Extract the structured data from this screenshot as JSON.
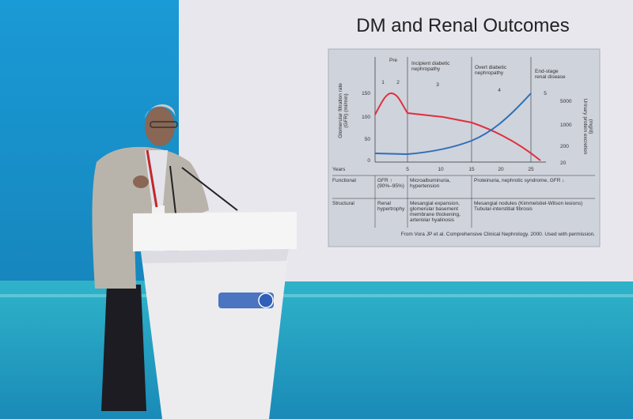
{
  "slide": {
    "title": "DM and Renal Outcomes",
    "figure": {
      "stage_headers": [
        [
          "Pre"
        ],
        [
          "Incipient diabetic",
          "nephropathy"
        ],
        [
          "Overt diabetic",
          "nephropathy"
        ],
        [
          "End-stage",
          "renal disease"
        ]
      ],
      "stage_numbers": [
        "1",
        "2",
        "3",
        "4",
        "5"
      ],
      "left_axis_label": [
        "Glomerular filtration rate",
        "(GFR) (ml/min)"
      ],
      "left_ticks": [
        150,
        100,
        50,
        0
      ],
      "right_axis_label": [
        "Urinary protein excretion",
        "(mg/d)"
      ],
      "right_ticks": [
        5000,
        1000,
        200,
        20
      ],
      "x_label": "Years",
      "x_ticks": [
        5,
        10,
        15,
        20,
        25
      ],
      "rows": [
        {
          "label": "Functional",
          "cells": [
            [
              "GFR ↑",
              "(90%–95%)"
            ],
            [
              "Microalbuminuria,",
              "hypertension"
            ],
            [
              "Proteinuria, nephrotic syndrome, GFR ↓"
            ]
          ]
        },
        {
          "label": "Structural",
          "cells": [
            [
              "Renal",
              "hypertrophy"
            ],
            [
              "Mesangial expansion,",
              "glomerular basement",
              "membrane thickening,",
              "arteriolar hyalinosis"
            ],
            [
              "Mesangial nodules (Kimmelstiel-Wilson lesions)",
              "Tubular-interstitial fibrosis"
            ]
          ]
        }
      ],
      "source": "From Vora JP et al. Comprehensive Clinical Nephrology. 2000. Used with permission."
    }
  }
}
